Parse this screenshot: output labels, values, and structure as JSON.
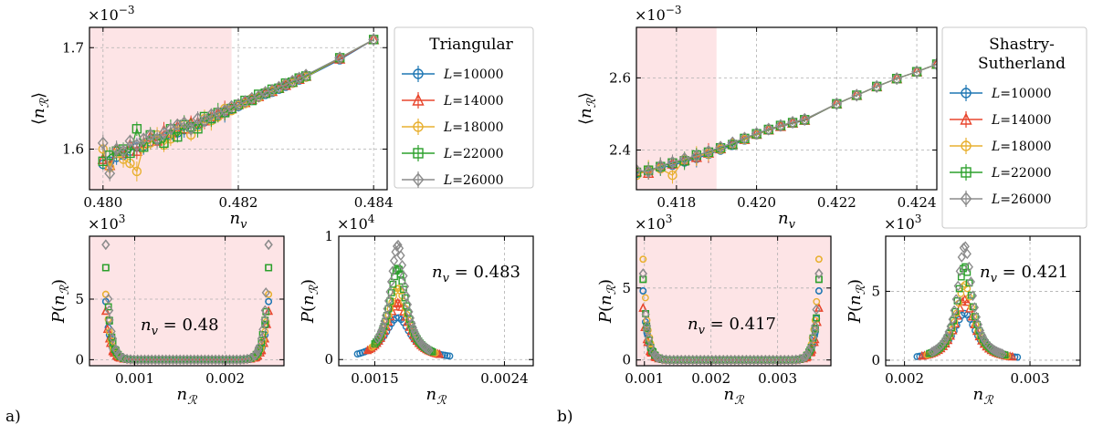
{
  "colors": {
    "L10000": "#1f77b4",
    "L14000": "#e8472e",
    "L18000": "#e8b030",
    "L22000": "#2ca02c",
    "L26000": "#8c8c8c",
    "shade": "#fde4e6"
  },
  "panel_labels": [
    "a)",
    "b)"
  ],
  "chart_data": [
    {
      "id": "a_main",
      "type": "line",
      "xlabel": "n_v",
      "ylabel": "⟨n_R⟩",
      "multiplier": "×10⁻³",
      "xlim": [
        0.4798,
        0.4842
      ],
      "ylim": [
        1.56,
        1.72
      ],
      "xticks": [
        0.48,
        0.482,
        0.484
      ],
      "xtick_labels": [
        "0.480",
        "0.482",
        "0.484"
      ],
      "yticks": [
        1.6,
        1.7
      ],
      "ytick_labels": [
        "1.6",
        "1.7"
      ],
      "shade_x": [
        0.4798,
        0.4819
      ],
      "legend": {
        "title": "Triangular",
        "entries": [
          "L=10000",
          "L=14000",
          "L=18000",
          "L=22000",
          "L=26000"
        ]
      },
      "x": [
        0.48,
        0.4801,
        0.4802,
        0.4803,
        0.4804,
        0.4805,
        0.4806,
        0.4807,
        0.4808,
        0.4809,
        0.481,
        0.4811,
        0.4812,
        0.4813,
        0.4814,
        0.4815,
        0.4816,
        0.4817,
        0.4818,
        0.4819,
        0.482,
        0.4821,
        0.4822,
        0.4823,
        0.4824,
        0.4825,
        0.4826,
        0.4827,
        0.4828,
        0.4829,
        0.483,
        0.4835,
        0.484
      ],
      "series": [
        {
          "name": "L=10000",
          "marker": "circle",
          "values": [
            1.585,
            1.588,
            1.592,
            1.594,
            1.598,
            1.602,
            1.603,
            1.607,
            1.609,
            1.612,
            1.614,
            1.616,
            1.619,
            1.621,
            1.624,
            1.627,
            1.63,
            1.633,
            1.636,
            1.639,
            1.642,
            1.645,
            1.648,
            1.651,
            1.654,
            1.656,
            1.659,
            1.662,
            1.665,
            1.668,
            1.671,
            1.688,
            1.708
          ]
        },
        {
          "name": "L=14000",
          "marker": "triangle",
          "values": [
            1.59,
            1.584,
            1.6,
            1.596,
            1.604,
            1.598,
            1.606,
            1.612,
            1.608,
            1.618,
            1.616,
            1.622,
            1.62,
            1.626,
            1.626,
            1.628,
            1.632,
            1.635,
            1.638,
            1.64,
            1.644,
            1.646,
            1.649,
            1.652,
            1.655,
            1.657,
            1.66,
            1.663,
            1.666,
            1.669,
            1.672,
            1.689,
            1.708
          ]
        },
        {
          "name": "L=18000",
          "marker": "circle",
          "values": [
            1.6,
            1.582,
            1.596,
            1.59,
            1.586,
            1.578,
            1.604,
            1.606,
            1.614,
            1.604,
            1.61,
            1.618,
            1.624,
            1.614,
            1.622,
            1.63,
            1.628,
            1.632,
            1.64,
            1.638,
            1.643,
            1.645,
            1.65,
            1.651,
            1.656,
            1.657,
            1.66,
            1.664,
            1.665,
            1.67,
            1.671,
            1.69,
            1.708
          ]
        },
        {
          "name": "L=22000",
          "marker": "square",
          "values": [
            1.588,
            1.594,
            1.598,
            1.6,
            1.596,
            1.62,
            1.602,
            1.614,
            1.61,
            1.606,
            1.62,
            1.612,
            1.624,
            1.622,
            1.62,
            1.632,
            1.63,
            1.636,
            1.636,
            1.64,
            1.644,
            1.648,
            1.648,
            1.654,
            1.655,
            1.659,
            1.66,
            1.665,
            1.666,
            1.67,
            1.672,
            1.69,
            1.708
          ]
        },
        {
          "name": "L=26000",
          "marker": "diamond",
          "values": [
            1.606,
            1.576,
            1.6,
            1.598,
            1.608,
            1.604,
            1.61,
            1.614,
            1.61,
            1.616,
            1.62,
            1.624,
            1.626,
            1.62,
            1.63,
            1.628,
            1.634,
            1.636,
            1.638,
            1.642,
            1.644,
            1.647,
            1.65,
            1.652,
            1.656,
            1.658,
            1.661,
            1.664,
            1.667,
            1.67,
            1.673,
            1.69,
            1.708
          ]
        }
      ]
    },
    {
      "id": "b_main",
      "type": "line",
      "xlabel": "n_v",
      "ylabel": "⟨n_R⟩",
      "multiplier": "×10⁻³",
      "xlim": [
        0.417,
        0.4245
      ],
      "ylim": [
        2.29,
        2.74
      ],
      "xticks": [
        0.418,
        0.42,
        0.422,
        0.424
      ],
      "xtick_labels": [
        "0.418",
        "0.420",
        "0.422",
        "0.424"
      ],
      "yticks": [
        2.4,
        2.6
      ],
      "ytick_labels": [
        "2.4",
        "2.6"
      ],
      "shade_x": [
        0.417,
        0.419
      ],
      "legend": {
        "title": "Shastry-\nSutherland",
        "entries": [
          "L=10000",
          "L=14000",
          "L=18000",
          "L=22000",
          "L=26000"
        ]
      },
      "x": [
        0.417,
        0.4173,
        0.4176,
        0.4179,
        0.4182,
        0.4185,
        0.4188,
        0.4191,
        0.4194,
        0.4197,
        0.42,
        0.4203,
        0.4206,
        0.4209,
        0.4212,
        0.422,
        0.4225,
        0.423,
        0.4235,
        0.424,
        0.4245
      ],
      "series": [
        {
          "name": "L=10000",
          "marker": "circle",
          "values": [
            2.335,
            2.342,
            2.35,
            2.358,
            2.367,
            2.377,
            2.388,
            2.4,
            2.413,
            2.428,
            2.442,
            2.455,
            2.465,
            2.474,
            2.482,
            2.528,
            2.552,
            2.576,
            2.598,
            2.617,
            2.638
          ]
        },
        {
          "name": "L=14000",
          "marker": "triangle",
          "values": [
            2.34,
            2.336,
            2.358,
            2.362,
            2.372,
            2.38,
            2.392,
            2.404,
            2.416,
            2.43,
            2.444,
            2.456,
            2.466,
            2.475,
            2.483,
            2.528,
            2.552,
            2.576,
            2.598,
            2.617,
            2.638
          ]
        },
        {
          "name": "L=18000",
          "marker": "circle",
          "values": [
            2.33,
            2.345,
            2.348,
            2.33,
            2.374,
            2.383,
            2.39,
            2.402,
            2.418,
            2.429,
            2.443,
            2.456,
            2.467,
            2.476,
            2.484,
            2.528,
            2.552,
            2.576,
            2.598,
            2.617,
            2.638
          ]
        },
        {
          "name": "L=22000",
          "marker": "square",
          "values": [
            2.338,
            2.344,
            2.354,
            2.364,
            2.37,
            2.386,
            2.394,
            2.406,
            2.415,
            2.432,
            2.445,
            2.457,
            2.468,
            2.476,
            2.484,
            2.528,
            2.552,
            2.576,
            2.598,
            2.617,
            2.638
          ]
        },
        {
          "name": "L=26000",
          "marker": "diamond",
          "values": [
            2.344,
            2.34,
            2.356,
            2.366,
            2.376,
            2.384,
            2.396,
            2.408,
            2.42,
            2.433,
            2.446,
            2.458,
            2.468,
            2.477,
            2.485,
            2.528,
            2.552,
            2.576,
            2.598,
            2.617,
            2.638
          ]
        }
      ]
    },
    {
      "id": "a_hist1",
      "type": "scatter",
      "xlabel": "n_R",
      "ylabel": "P(n_R)",
      "multiplier": "×10³",
      "annotation": "n_v = 0.48",
      "xlim": [
        0.0005,
        0.00265
      ],
      "ylim": [
        -0.5,
        10.2
      ],
      "xticks": [
        0.001,
        0.002
      ],
      "xtick_labels": [
        "0.001",
        "0.002"
      ],
      "yticks": [
        0,
        5
      ],
      "ytick_labels": [
        "0",
        "5"
      ],
      "shade_all": true,
      "distribution": {
        "kind": "bimodal",
        "left": 0.00068,
        "right": 0.00248,
        "width": 6e-05,
        "peaks": [
          4.8,
          4.0,
          5.4,
          7.6,
          9.5
        ]
      }
    },
    {
      "id": "a_hist2",
      "type": "scatter",
      "xlabel": "n_R",
      "ylabel": "P(n_R)",
      "multiplier": "×10⁴",
      "annotation": "n_v = 0.483",
      "xlim": [
        0.00125,
        0.0026
      ],
      "ylim": [
        -0.05,
        1.0
      ],
      "xticks": [
        0.0015,
        0.0024
      ],
      "xtick_labels": [
        "0.0015",
        "0.0024"
      ],
      "yticks": [
        0,
        1
      ],
      "ytick_labels": [
        "0",
        "1"
      ],
      "shade_all": false,
      "distribution": {
        "kind": "peak",
        "center": 0.00166,
        "widths": [
          0.00012,
          0.0001,
          9e-05,
          8e-05,
          7.2e-05
        ],
        "peaks": [
          0.34,
          0.46,
          0.58,
          0.74,
          0.93
        ],
        "xmin": [
          0.00138,
          0.00145,
          0.00148,
          0.0015,
          0.00152
        ],
        "xmax": [
          0.00202,
          0.00195,
          0.00192,
          0.0019,
          0.00188
        ]
      }
    },
    {
      "id": "b_hist1",
      "type": "scatter",
      "xlabel": "n_R",
      "ylabel": "P(n_R)",
      "multiplier": "×10³",
      "annotation": "n_v = 0.417",
      "xlim": [
        0.00088,
        0.0038
      ],
      "ylim": [
        -0.4,
        8.6
      ],
      "xticks": [
        0.001,
        0.002,
        0.003
      ],
      "xtick_labels": [
        "0.001",
        "0.002",
        "0.003"
      ],
      "yticks": [
        0,
        5
      ],
      "ytick_labels": [
        "0",
        "5"
      ],
      "shade_all": true,
      "distribution": {
        "kind": "bimodal",
        "left": 0.00098,
        "right": 0.00362,
        "width": 8e-05,
        "peaks": [
          4.8,
          3.6,
          7.0,
          5.6,
          6.0
        ]
      }
    },
    {
      "id": "b_hist2",
      "type": "scatter",
      "xlabel": "n_R",
      "ylabel": "P(n_R)",
      "multiplier": "×10³",
      "annotation": "n_v = 0.421",
      "xlim": [
        0.00185,
        0.0034
      ],
      "ylim": [
        -0.4,
        9.0
      ],
      "xticks": [
        0.002,
        0.003
      ],
      "xtick_labels": [
        "0.002",
        "0.003"
      ],
      "yticks": [
        0,
        5
      ],
      "ytick_labels": [
        "0",
        "5"
      ],
      "shade_all": false,
      "distribution": {
        "kind": "peak",
        "center": 0.00248,
        "widths": [
          0.00012,
          0.0001,
          9e-05,
          8.5e-05,
          8e-05
        ],
        "peaks": [
          3.4,
          4.4,
          5.5,
          6.8,
          8.3
        ],
        "xmin": [
          0.0021,
          0.00214,
          0.00218,
          0.0022,
          0.00222
        ],
        "xmax": [
          0.0029,
          0.00286,
          0.00282,
          0.0028,
          0.00278
        ]
      }
    }
  ]
}
